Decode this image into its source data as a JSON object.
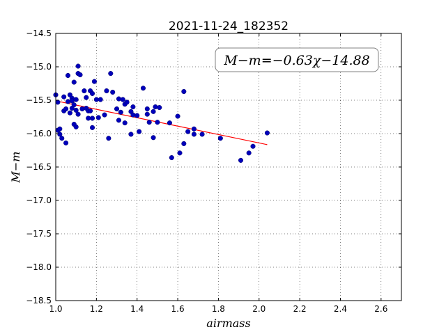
{
  "chart_data": {
    "type": "scatter",
    "title": "2021-11-24_182352",
    "xlabel": "airmass",
    "ylabel": "M−m",
    "xlim": [
      1.0,
      2.7
    ],
    "ylim": [
      -18.5,
      -14.5
    ],
    "y_inverted": true,
    "grid": true,
    "grid_style": "dotted",
    "xticks": [
      "1.0",
      "1.2",
      "1.4",
      "1.6",
      "1.8",
      "2.0",
      "2.2",
      "2.4",
      "2.6"
    ],
    "yticks": [
      "−14.5",
      "−15.0",
      "−15.5",
      "−16.0",
      "−16.5",
      "−17.0",
      "−17.5",
      "−18.0",
      "−18.5"
    ],
    "annotation": "M−m=−0.63χ−14.88",
    "annotation_location": "top-right",
    "fit": {
      "slope": -0.63,
      "intercept": -14.88,
      "x_range": [
        1.0,
        2.04
      ],
      "color": "#ff0000"
    },
    "marker_color": "#0000bb",
    "series": [
      {
        "points": [
          [
            1.0,
            -15.42
          ],
          [
            1.01,
            -15.53
          ],
          [
            1.01,
            -15.95
          ],
          [
            1.02,
            -16.01
          ],
          [
            1.02,
            -15.93
          ],
          [
            1.03,
            -16.07
          ],
          [
            1.04,
            -15.45
          ],
          [
            1.04,
            -15.66
          ],
          [
            1.05,
            -16.14
          ],
          [
            1.05,
            -15.63
          ],
          [
            1.06,
            -15.13
          ],
          [
            1.06,
            -15.52
          ],
          [
            1.07,
            -15.42
          ],
          [
            1.07,
            -15.69
          ],
          [
            1.08,
            -15.47
          ],
          [
            1.08,
            -15.62
          ],
          [
            1.08,
            -15.51
          ],
          [
            1.09,
            -15.86
          ],
          [
            1.09,
            -15.57
          ],
          [
            1.09,
            -15.23
          ],
          [
            1.1,
            -15.65
          ],
          [
            1.1,
            -15.9
          ],
          [
            1.1,
            -15.49
          ],
          [
            1.11,
            -15.1
          ],
          [
            1.11,
            -14.99
          ],
          [
            1.11,
            -15.71
          ],
          [
            1.12,
            -15.12
          ],
          [
            1.13,
            -15.63
          ],
          [
            1.14,
            -15.36
          ],
          [
            1.15,
            -15.46
          ],
          [
            1.15,
            -15.62
          ],
          [
            1.16,
            -15.66
          ],
          [
            1.16,
            -15.77
          ],
          [
            1.17,
            -15.36
          ],
          [
            1.17,
            -15.66
          ],
          [
            1.18,
            -15.4
          ],
          [
            1.18,
            -15.77
          ],
          [
            1.18,
            -15.91
          ],
          [
            1.19,
            -15.22
          ],
          [
            1.2,
            -15.49
          ],
          [
            1.21,
            -15.76
          ],
          [
            1.22,
            -15.49
          ],
          [
            1.24,
            -15.72
          ],
          [
            1.25,
            -15.36
          ],
          [
            1.26,
            -16.07
          ],
          [
            1.27,
            -15.1
          ],
          [
            1.28,
            -15.38
          ],
          [
            1.3,
            -15.63
          ],
          [
            1.31,
            -15.48
          ],
          [
            1.31,
            -15.8
          ],
          [
            1.32,
            -15.68
          ],
          [
            1.33,
            -15.49
          ],
          [
            1.34,
            -15.84
          ],
          [
            1.34,
            -15.56
          ],
          [
            1.35,
            -15.53
          ],
          [
            1.37,
            -15.67
          ],
          [
            1.37,
            -16.01
          ],
          [
            1.38,
            -15.6
          ],
          [
            1.38,
            -15.72
          ],
          [
            1.4,
            -15.73
          ],
          [
            1.41,
            -15.97
          ],
          [
            1.43,
            -15.32
          ],
          [
            1.45,
            -15.71
          ],
          [
            1.45,
            -15.63
          ],
          [
            1.46,
            -15.83
          ],
          [
            1.48,
            -15.67
          ],
          [
            1.48,
            -16.06
          ],
          [
            1.49,
            -15.6
          ],
          [
            1.5,
            -15.83
          ],
          [
            1.51,
            -15.61
          ],
          [
            1.56,
            -15.84
          ],
          [
            1.57,
            -16.36
          ],
          [
            1.6,
            -15.74
          ],
          [
            1.61,
            -16.29
          ],
          [
            1.63,
            -16.15
          ],
          [
            1.63,
            -15.37
          ],
          [
            1.65,
            -15.97
          ],
          [
            1.68,
            -15.93
          ],
          [
            1.68,
            -16.01
          ],
          [
            1.72,
            -16.01
          ],
          [
            1.81,
            -16.07
          ],
          [
            1.91,
            -16.4
          ],
          [
            1.95,
            -16.29
          ],
          [
            1.97,
            -16.19
          ],
          [
            2.04,
            -15.99
          ]
        ]
      }
    ]
  }
}
